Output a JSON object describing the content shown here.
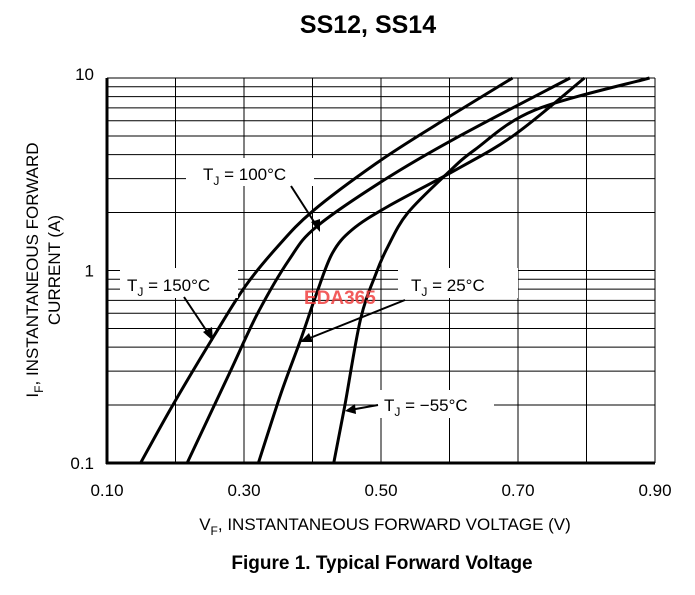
{
  "chart_data": {
    "type": "line",
    "title": "SS12, SS14",
    "caption": "Figure 1. Typical Forward Voltage",
    "xlabel": {
      "main": "V",
      "sub": "F",
      "rest": ", INSTANTANEOUS FORWARD VOLTAGE (V)"
    },
    "ylabel": {
      "main": "I",
      "sub": "F",
      "rest": ", INSTANTANEOUS FORWARD",
      "line2": "CURRENT (A)"
    },
    "xlim": [
      0.1,
      0.9
    ],
    "ylim": [
      0.1,
      10
    ],
    "yscale": "log",
    "grid": true,
    "xticks": [
      "0.10",
      "0.30",
      "0.50",
      "0.70",
      "0.90"
    ],
    "xtick_values": [
      0.1,
      0.3,
      0.5,
      0.7,
      0.9
    ],
    "yticks": [
      "0.1",
      "1",
      "10"
    ],
    "ytick_values": [
      0.1,
      1,
      10
    ],
    "line_color": "#000000",
    "watermark": {
      "text": "EDA365",
      "color": "#f04040"
    },
    "series": [
      {
        "name": "TJ = 150°C",
        "label": {
          "main": "T",
          "sub": "J",
          "rest": " = 150°C"
        },
        "x": [
          0.149,
          0.195,
          0.256,
          0.302,
          0.349,
          0.4,
          0.493,
          0.58,
          0.692
        ],
        "y": [
          0.1,
          0.197,
          0.456,
          0.83,
          1.33,
          2.03,
          3.6,
          5.7,
          10
        ]
      },
      {
        "name": "TJ = 100°C",
        "label": {
          "main": "T",
          "sub": "J",
          "rest": " = 100°C"
        },
        "x": [
          0.217,
          0.279,
          0.32,
          0.366,
          0.406,
          0.505,
          0.609,
          0.776
        ],
        "y": [
          0.1,
          0.294,
          0.6,
          1.14,
          1.69,
          2.96,
          4.87,
          10
        ]
      },
      {
        "name": "TJ = 25°C",
        "label": {
          "main": "T",
          "sub": "J",
          "rest": " = 25°C"
        },
        "x": [
          0.321,
          0.354,
          0.383,
          0.406,
          0.429,
          0.458,
          0.51,
          0.609,
          0.695,
          0.797
        ],
        "y": [
          0.1,
          0.23,
          0.44,
          0.76,
          1.23,
          1.63,
          2.15,
          3.33,
          5.07,
          10
        ]
      },
      {
        "name": "TJ = −55°C",
        "label": {
          "main": "T",
          "sub": "J",
          "rest": " = −55°C"
        },
        "x": [
          0.431,
          0.447,
          0.47,
          0.493,
          0.51,
          0.539,
          0.597,
          0.637,
          0.724,
          0.892
        ],
        "y": [
          0.1,
          0.197,
          0.556,
          0.97,
          1.33,
          1.99,
          3.2,
          4.24,
          6.8,
          10
        ]
      }
    ]
  }
}
